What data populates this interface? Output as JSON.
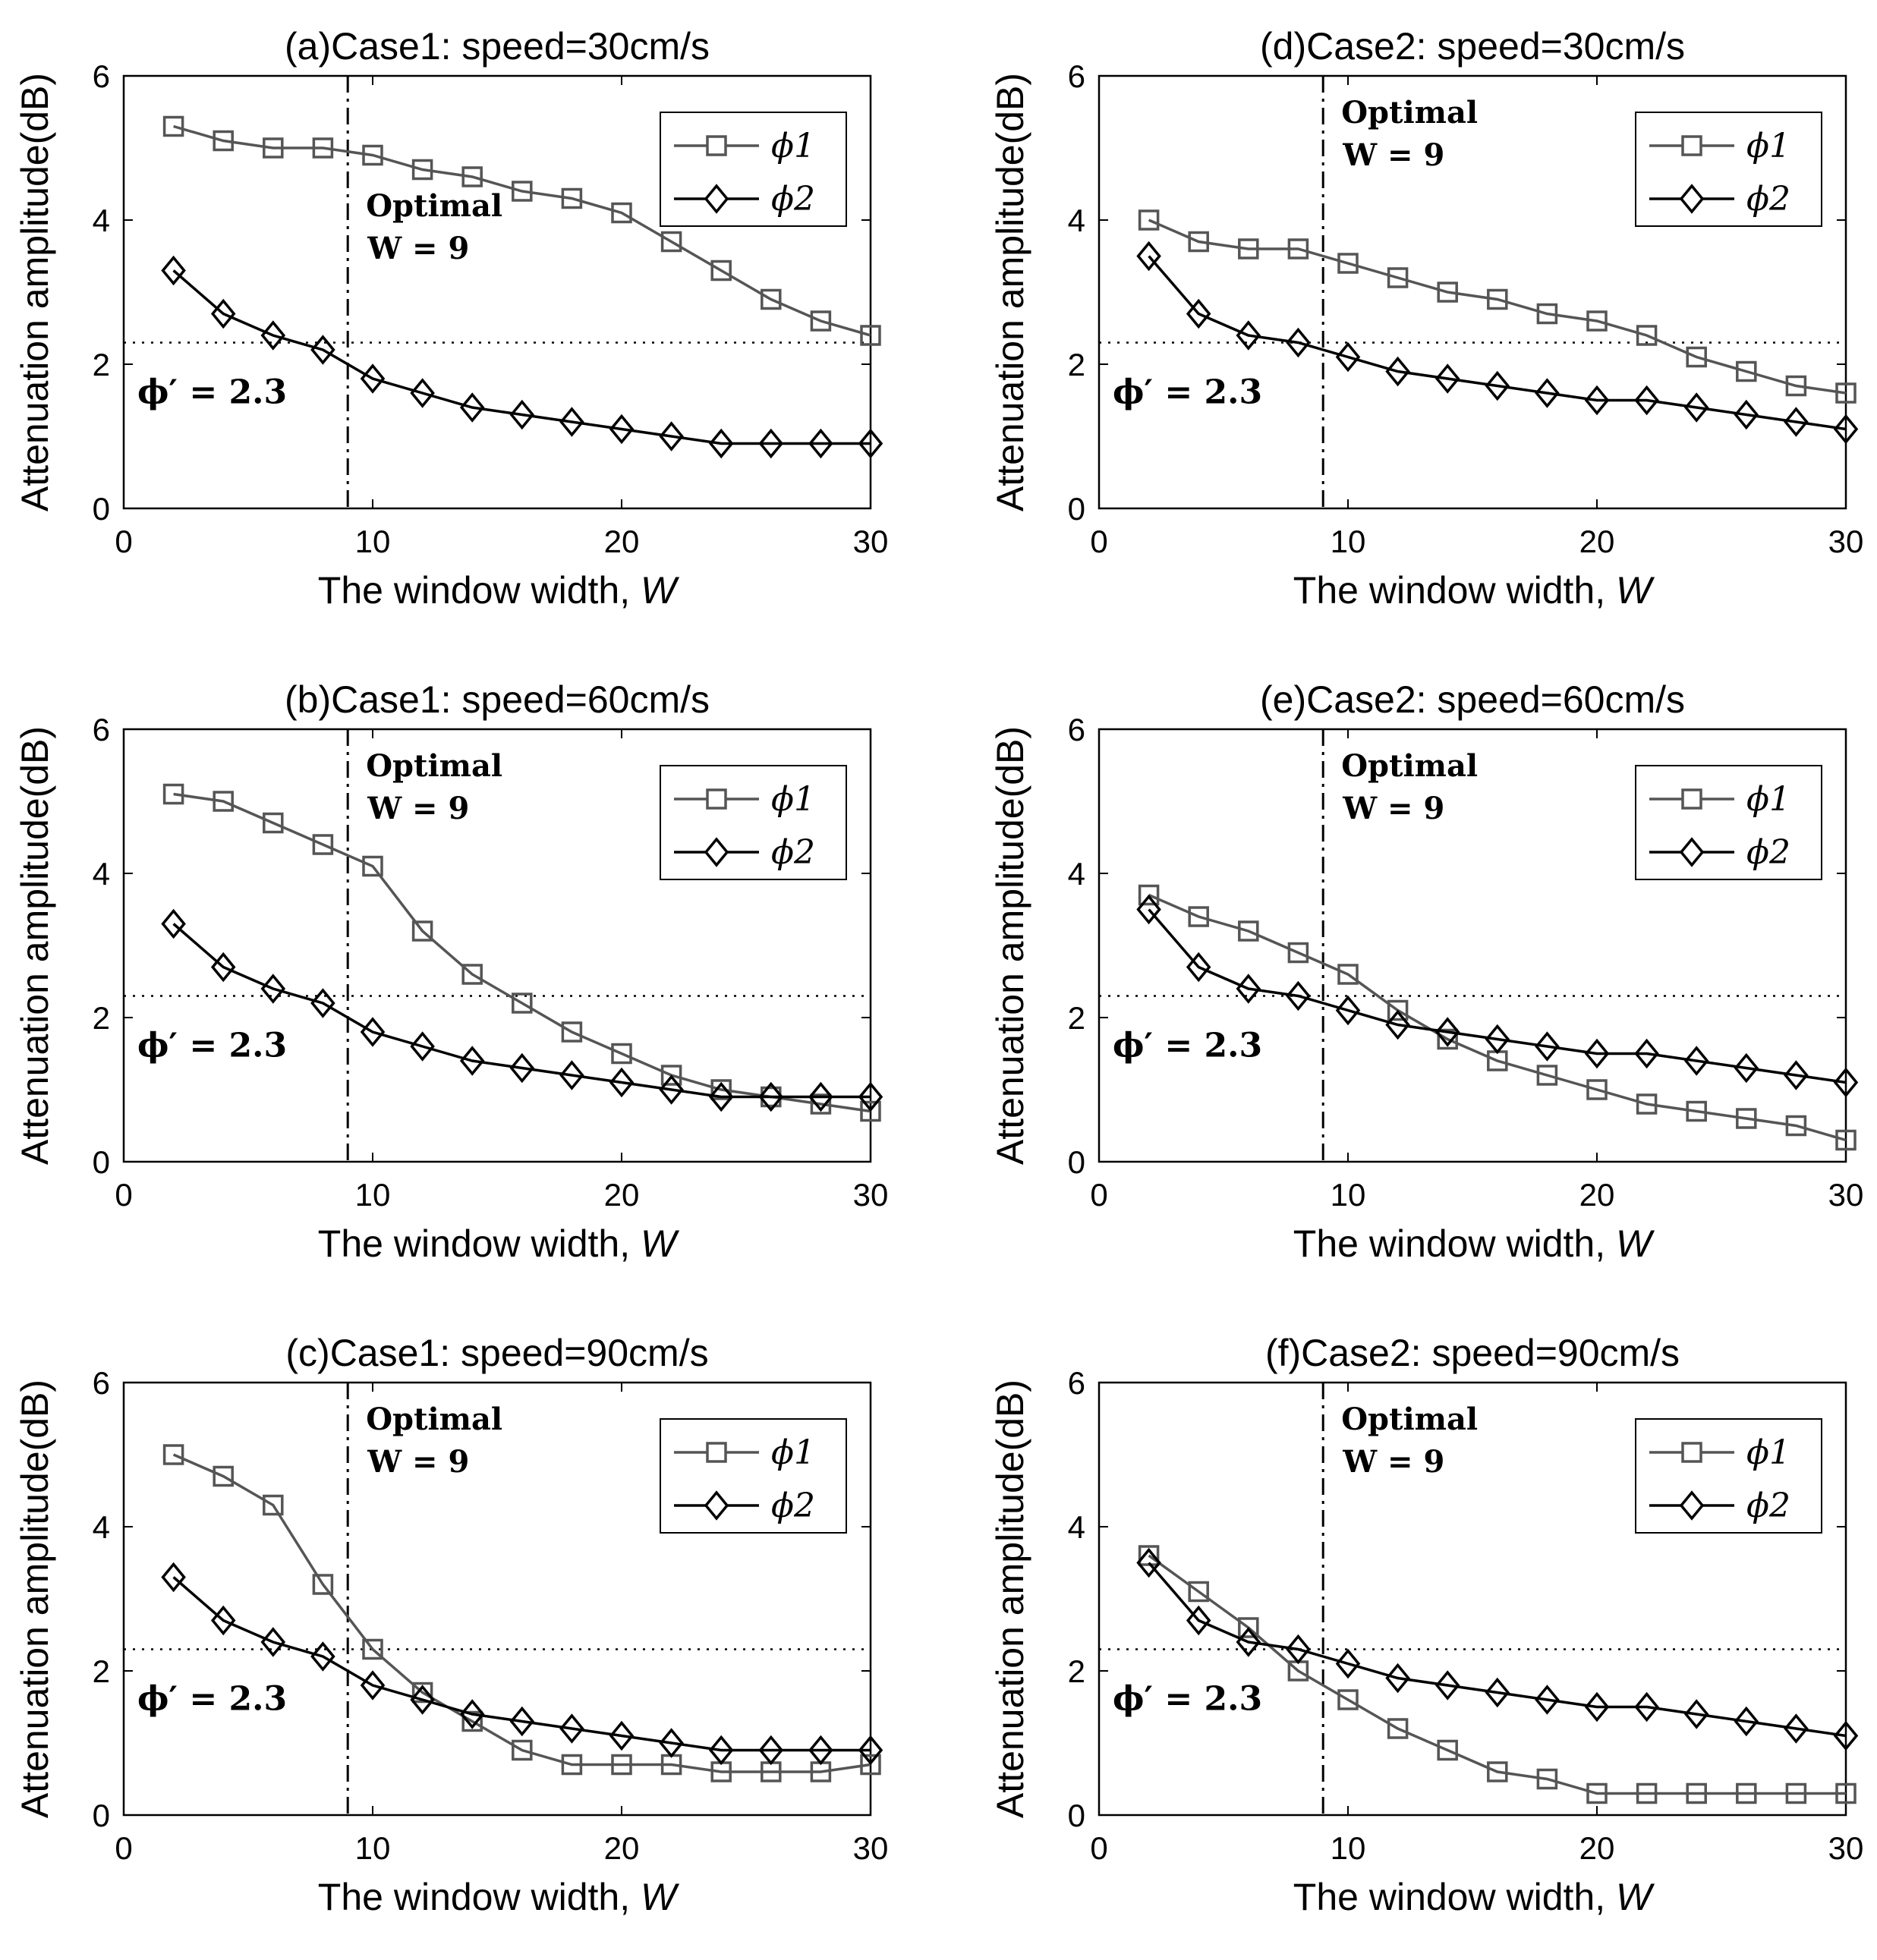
{
  "figure": {
    "xlabel_text": "The window width, ",
    "xlabel_var": "W",
    "ylabel": "Attenuation amplitude(dB)",
    "annotation_line1": "Optimal",
    "annotation_line2": "W = 9",
    "threshold_label": "ϕ′ = 2.3",
    "threshold": 2.3,
    "optimal_w": 9
  },
  "colors": {
    "phi1": "#555555",
    "phi2": "#000000",
    "axes": "#000000",
    "background": "#ffffff"
  },
  "chart_data": [
    {
      "id": "a",
      "type": "line",
      "title": "(a)Case1: speed=30cm/s",
      "xlabel": "The window width, W",
      "ylabel": "Attenuation amplitude(dB)",
      "xlim": [
        0,
        30
      ],
      "ylim": [
        0,
        6
      ],
      "xticks": [
        0,
        10,
        20,
        30
      ],
      "yticks": [
        0,
        2,
        4,
        6
      ],
      "legend_position": "top-right",
      "annotation_position": "lower",
      "x": [
        2,
        4,
        6,
        8,
        10,
        12,
        14,
        16,
        18,
        20,
        22,
        24,
        26,
        28,
        30
      ],
      "series": [
        {
          "name": "ϕ1",
          "marker": "square",
          "values": [
            5.3,
            5.1,
            5.0,
            5.0,
            4.9,
            4.7,
            4.6,
            4.4,
            4.3,
            4.1,
            3.7,
            3.3,
            2.9,
            2.6,
            2.4
          ]
        },
        {
          "name": "ϕ2",
          "marker": "diamond",
          "values": [
            3.3,
            2.7,
            2.4,
            2.2,
            1.8,
            1.6,
            1.4,
            1.3,
            1.2,
            1.1,
            1.0,
            0.9,
            0.9,
            0.9,
            0.9
          ]
        }
      ]
    },
    {
      "id": "b",
      "type": "line",
      "title": "(b)Case1: speed=60cm/s",
      "xlabel": "The window width, W",
      "ylabel": "Attenuation amplitude(dB)",
      "xlim": [
        0,
        30
      ],
      "ylim": [
        0,
        6
      ],
      "xticks": [
        0,
        10,
        20,
        30
      ],
      "yticks": [
        0,
        2,
        4,
        6
      ],
      "legend_position": "top-right",
      "annotation_position": "upper",
      "x": [
        2,
        4,
        6,
        8,
        10,
        12,
        14,
        16,
        18,
        20,
        22,
        24,
        26,
        28,
        30
      ],
      "series": [
        {
          "name": "ϕ1",
          "marker": "square",
          "values": [
            5.1,
            5.0,
            4.7,
            4.4,
            4.1,
            3.2,
            2.6,
            2.2,
            1.8,
            1.5,
            1.2,
            1.0,
            0.9,
            0.8,
            0.7
          ]
        },
        {
          "name": "ϕ2",
          "marker": "diamond",
          "values": [
            3.3,
            2.7,
            2.4,
            2.2,
            1.8,
            1.6,
            1.4,
            1.3,
            1.2,
            1.1,
            1.0,
            0.9,
            0.9,
            0.9,
            0.9
          ]
        }
      ]
    },
    {
      "id": "c",
      "type": "line",
      "title": "(c)Case1: speed=90cm/s",
      "xlabel": "The window width, W",
      "ylabel": "Attenuation amplitude(dB)",
      "xlim": [
        0,
        30
      ],
      "ylim": [
        0,
        6
      ],
      "xticks": [
        0,
        10,
        20,
        30
      ],
      "yticks": [
        0,
        2,
        4,
        6
      ],
      "legend_position": "top-right",
      "annotation_position": "upper",
      "x": [
        2,
        4,
        6,
        8,
        10,
        12,
        14,
        16,
        18,
        20,
        22,
        24,
        26,
        28,
        30
      ],
      "series": [
        {
          "name": "ϕ1",
          "marker": "square",
          "values": [
            5.0,
            4.7,
            4.3,
            3.2,
            2.3,
            1.7,
            1.3,
            0.9,
            0.7,
            0.7,
            0.7,
            0.6,
            0.6,
            0.6,
            0.7
          ]
        },
        {
          "name": "ϕ2",
          "marker": "diamond",
          "values": [
            3.3,
            2.7,
            2.4,
            2.2,
            1.8,
            1.6,
            1.4,
            1.3,
            1.2,
            1.1,
            1.0,
            0.9,
            0.9,
            0.9,
            0.9
          ]
        }
      ]
    },
    {
      "id": "d",
      "type": "line",
      "title": "(d)Case2: speed=30cm/s",
      "xlabel": "The window width, W",
      "ylabel": "Attenuation amplitude(dB)",
      "xlim": [
        0,
        30
      ],
      "ylim": [
        0,
        6
      ],
      "xticks": [
        0,
        10,
        20,
        30
      ],
      "yticks": [
        0,
        2,
        4,
        6
      ],
      "legend_position": "top-right",
      "annotation_position": "upper",
      "x": [
        2,
        4,
        6,
        8,
        10,
        12,
        14,
        16,
        18,
        20,
        22,
        24,
        26,
        28,
        30
      ],
      "series": [
        {
          "name": "ϕ1",
          "marker": "square",
          "values": [
            4.0,
            3.7,
            3.6,
            3.6,
            3.4,
            3.2,
            3.0,
            2.9,
            2.7,
            2.6,
            2.4,
            2.1,
            1.9,
            1.7,
            1.6
          ]
        },
        {
          "name": "ϕ2",
          "marker": "diamond",
          "values": [
            3.5,
            2.7,
            2.4,
            2.3,
            2.1,
            1.9,
            1.8,
            1.7,
            1.6,
            1.5,
            1.5,
            1.4,
            1.3,
            1.2,
            1.1
          ]
        }
      ]
    },
    {
      "id": "e",
      "type": "line",
      "title": "(e)Case2: speed=60cm/s",
      "xlabel": "The window width, W",
      "ylabel": "Attenuation amplitude(dB)",
      "xlim": [
        0,
        30
      ],
      "ylim": [
        0,
        6
      ],
      "xticks": [
        0,
        10,
        20,
        30
      ],
      "yticks": [
        0,
        2,
        4,
        6
      ],
      "legend_position": "top-right",
      "annotation_position": "upper",
      "x": [
        2,
        4,
        6,
        8,
        10,
        12,
        14,
        16,
        18,
        20,
        22,
        24,
        26,
        28,
        30
      ],
      "series": [
        {
          "name": "ϕ1",
          "marker": "square",
          "values": [
            3.7,
            3.4,
            3.2,
            2.9,
            2.6,
            2.1,
            1.7,
            1.4,
            1.2,
            1.0,
            0.8,
            0.7,
            0.6,
            0.5,
            0.3
          ]
        },
        {
          "name": "ϕ2",
          "marker": "diamond",
          "values": [
            3.5,
            2.7,
            2.4,
            2.3,
            2.1,
            1.9,
            1.8,
            1.7,
            1.6,
            1.5,
            1.5,
            1.4,
            1.3,
            1.2,
            1.1
          ]
        }
      ]
    },
    {
      "id": "f",
      "type": "line",
      "title": "(f)Case2: speed=90cm/s",
      "xlabel": "The window width, W",
      "ylabel": "Attenuation amplitude(dB)",
      "xlim": [
        0,
        30
      ],
      "ylim": [
        0,
        6
      ],
      "xticks": [
        0,
        10,
        20,
        30
      ],
      "yticks": [
        0,
        2,
        4,
        6
      ],
      "legend_position": "top-right",
      "annotation_position": "upper",
      "x": [
        2,
        4,
        6,
        8,
        10,
        12,
        14,
        16,
        18,
        20,
        22,
        24,
        26,
        28,
        30
      ],
      "series": [
        {
          "name": "ϕ1",
          "marker": "square",
          "values": [
            3.6,
            3.1,
            2.6,
            2.0,
            1.6,
            1.2,
            0.9,
            0.6,
            0.5,
            0.3,
            0.3,
            0.3,
            0.3,
            0.3,
            0.3
          ]
        },
        {
          "name": "ϕ2",
          "marker": "diamond",
          "values": [
            3.5,
            2.7,
            2.4,
            2.3,
            2.1,
            1.9,
            1.8,
            1.7,
            1.6,
            1.5,
            1.5,
            1.4,
            1.3,
            1.2,
            1.1
          ]
        }
      ]
    }
  ]
}
